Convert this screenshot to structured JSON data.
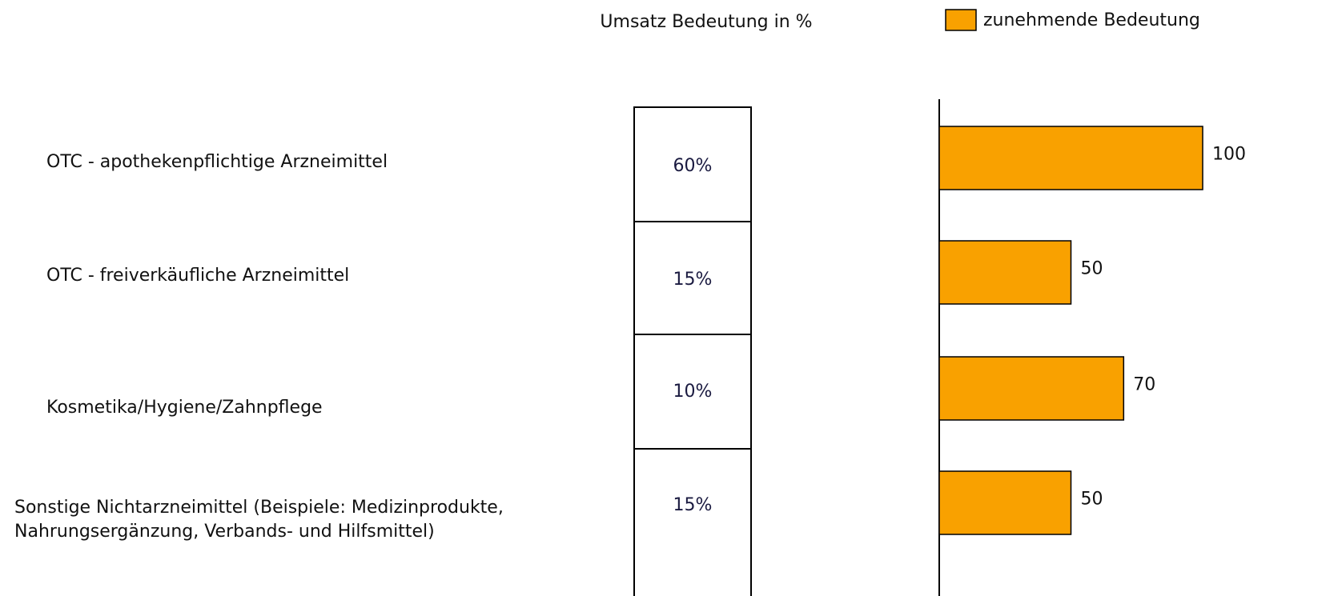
{
  "chart_data": {
    "type": "bar",
    "categories": [
      "OTC - apothekenpflichtige Arzneimittel",
      "OTC - freiverkäufliche Arzneimittel",
      "Kosmetika/Hygiene/Zahnpflege",
      "Sonstige Nichtarzneimittel (Beispiele: Medizinprodukte, Nahrungsergänzung, Verbands- und Hilfsmittel)"
    ],
    "series": [
      {
        "name": "zunehmende Bedeutung",
        "color": "#f9a100",
        "values": [
          100,
          50,
          70,
          50
        ]
      }
    ],
    "xlim": [
      0,
      100
    ],
    "legend": "top-right",
    "table": {
      "title": "Umsatz Bedeutung in %",
      "values": [
        60,
        15,
        10,
        15
      ],
      "value_labels": [
        "60%",
        "15%",
        "10%",
        "15%"
      ]
    }
  }
}
